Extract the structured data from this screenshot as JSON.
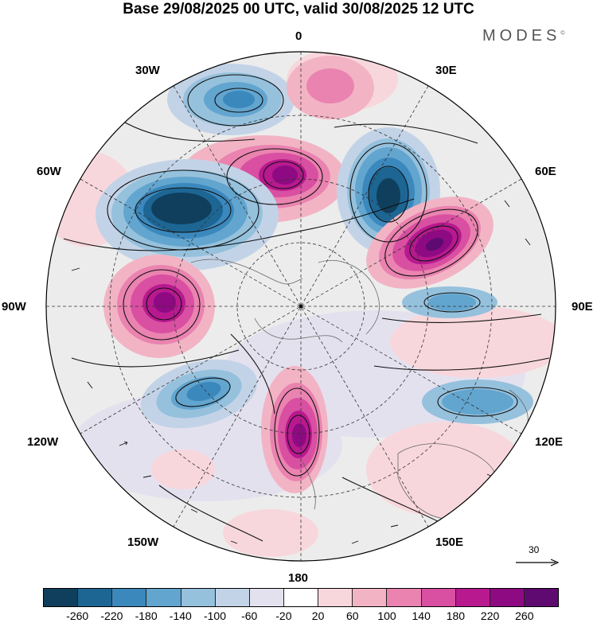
{
  "title": "Base 29/08/2025 00 UTC, valid 30/08/2025 12 UTC",
  "brand": "MODES",
  "brand_mark": "©",
  "lon_labels": {
    "top": "0",
    "bottom": "180",
    "left": "90W",
    "right": "90E",
    "upper_left_1": "30W",
    "upper_left_2": "60W",
    "upper_right_1": "30E",
    "upper_right_2": "60E",
    "lower_left_1": "120W",
    "lower_left_2": "150W",
    "lower_right_1": "120E",
    "lower_right_2": "150E"
  },
  "reference_vector": {
    "value": "30"
  },
  "colorbar": {
    "ticks": [
      "-260",
      "-220",
      "-180",
      "-140",
      "-100",
      "-60",
      "-20",
      "20",
      "60",
      "100",
      "140",
      "180",
      "220",
      "260"
    ],
    "colors": [
      "#0f3f5c",
      "#1d6694",
      "#3b88bd",
      "#62a5cf",
      "#95c1dd",
      "#c3d3e7",
      "#e4e1ef",
      "#ffffff",
      "#f8d7dc",
      "#f2b4c4",
      "#ea83b0",
      "#d94fa1",
      "#b8198f",
      "#8e0a82",
      "#5e0a70"
    ]
  },
  "map_style": {
    "disc_background": "#ececec",
    "outline": "#000000",
    "graticule": "#333333",
    "vectors": "#111111"
  }
}
